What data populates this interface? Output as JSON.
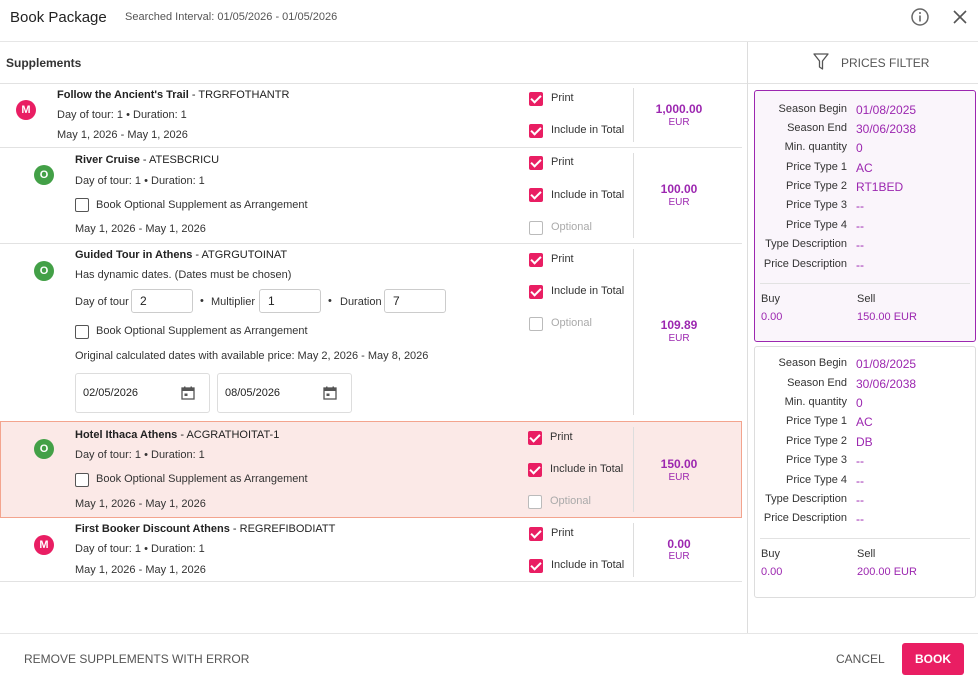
{
  "header": {
    "title": "Book Package",
    "interval": "Searched Interval: 01/05/2026 - 01/05/2026"
  },
  "supplements": {
    "title": "Supplements",
    "print_label": "Print",
    "include_label": "Include in Total",
    "optional_label": "Optional",
    "arrangement_label": "Book Optional Supplement as Arrangement",
    "items": [
      {
        "badge": "M",
        "name": "Follow the Ancient's Trail",
        "code": " - TRGRFOTHANTR",
        "tour": "Day of tour: 1  •  Duration: 1",
        "dates": "May 1, 2026 - May 1, 2026",
        "price": "1,000.00",
        "currency": "EUR"
      },
      {
        "badge": "O",
        "name": "River Cruise",
        "code": " - ATESBCRICU",
        "tour": "Day of tour: 1  •  Duration: 1",
        "dates": "May 1, 2026 - May 1, 2026",
        "price": "100.00",
        "currency": "EUR"
      },
      {
        "badge": "O",
        "name": "Guided Tour in Athens",
        "code": " - ATGRGUTOINAT",
        "dynamic": "Has dynamic dates. (Dates must be chosen)",
        "day_label": "Day of tour",
        "day_value": "2",
        "mult_label": "Multiplier",
        "mult_value": "1",
        "dur_label": "Duration",
        "dur_value": "7",
        "original": "Original calculated dates with available price: May 2, 2026 - May 8, 2026",
        "date_from": "02/05/2026",
        "date_to": "08/05/2026",
        "price": "109.89",
        "currency": "EUR"
      },
      {
        "badge": "O",
        "name": "Hotel Ithaca Athens",
        "code": " - ACGRATHOITAT-1",
        "tour": "Day of tour: 1  •  Duration: 1",
        "dates": "May 1, 2026 - May 1, 2026",
        "price": "150.00",
        "currency": "EUR"
      },
      {
        "badge": "M",
        "name": "First Booker Discount Athens",
        "code": " - REGREFIBODIATT",
        "tour": "Day of tour: 1  •  Duration: 1",
        "dates": "May 1, 2026 - May 1, 2026",
        "price": "0.00",
        "currency": "EUR"
      }
    ]
  },
  "prices_filter": {
    "title": "PRICES FILTER",
    "labels": {
      "season_begin": "Season Begin",
      "season_end": "Season End",
      "min_qty": "Min. quantity",
      "pt1": "Price Type 1",
      "pt2": "Price Type 2",
      "pt3": "Price Type 3",
      "pt4": "Price Type 4",
      "type_desc": "Type Description",
      "price_desc": "Price Description",
      "buy": "Buy",
      "sell": "Sell"
    },
    "cards": [
      {
        "season_begin": "01/08/2025",
        "season_end": "30/06/2038",
        "min_qty": "0",
        "pt1": "AC",
        "pt2": "RT1BED",
        "pt3": "--",
        "pt4": "--",
        "type_desc": "--",
        "price_desc": "--",
        "buy": "0.00",
        "sell": "150.00 EUR"
      },
      {
        "season_begin": "01/08/2025",
        "season_end": "30/06/2038",
        "min_qty": "0",
        "pt1": "AC",
        "pt2": "DB",
        "pt3": "--",
        "pt4": "--",
        "type_desc": "--",
        "price_desc": "--",
        "buy": "0.00",
        "sell": "200.00 EUR"
      }
    ]
  },
  "footer": {
    "remove_label": "REMOVE SUPPLEMENTS WITH ERROR",
    "cancel_label": "CANCEL",
    "book_label": "BOOK"
  },
  "colors": {
    "accent": "#e91e63",
    "price": "#9c27b0",
    "optional_badge": "#43a047",
    "highlight": "#fbe9e7"
  }
}
